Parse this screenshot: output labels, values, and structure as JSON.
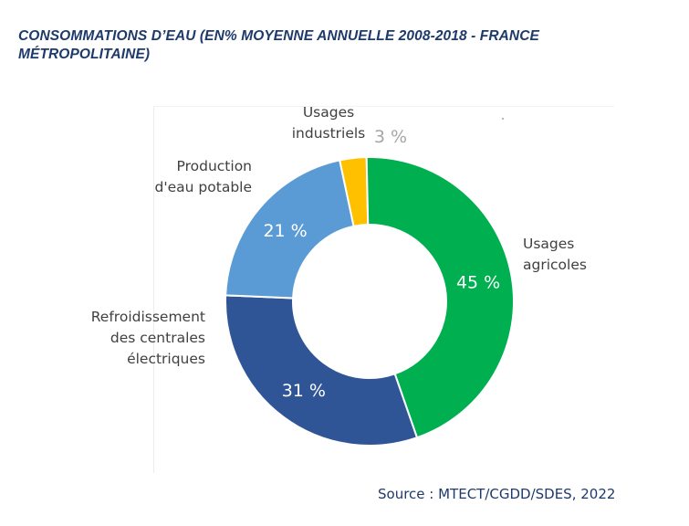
{
  "title": "CONSOMMATIONS D’EAU (EN% MOYENNE ANNUELLE 2008-2018 - FRANCE MÉTROPOLITAINE)",
  "source": "Source : MTECT/CGDD/SDES, 2022",
  "chart_data": {
    "type": "pie",
    "donut": true,
    "slices": [
      {
        "label": [
          "Usages",
          "agricoles"
        ],
        "value": 45,
        "value_label": "45 %",
        "color": "#00b050"
      },
      {
        "label": [
          "Refroidissement",
          "des centrales",
          "électriques"
        ],
        "value": 31,
        "value_label": "31 %",
        "color": "#2f5597"
      },
      {
        "label": [
          "Production",
          "d'eau potable"
        ],
        "value": 21,
        "value_label": "21 %",
        "color": "#5b9bd5"
      },
      {
        "label": [
          "Usages",
          "industriels"
        ],
        "value": 3,
        "value_label": "3 %",
        "color": "#ffc000"
      }
    ],
    "legend": "none"
  }
}
